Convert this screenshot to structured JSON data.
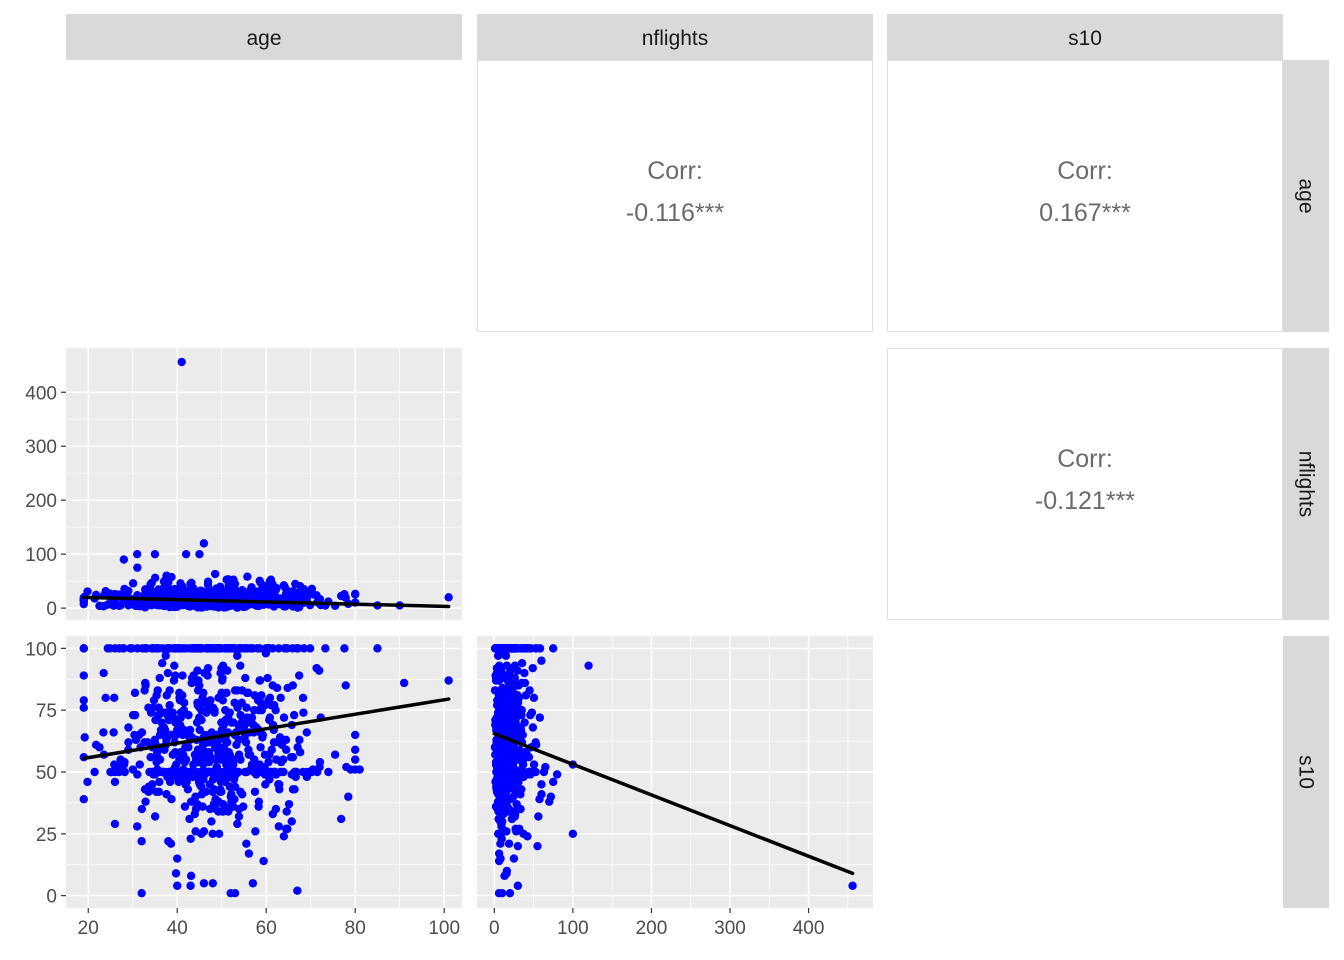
{
  "chart_data": {
    "type": "scatter",
    "variables": [
      "age",
      "nflights",
      "s10"
    ],
    "colors": {
      "point": "#0000ff",
      "fit_line": "#000000",
      "panel_bg": "#ebebeb",
      "strip_bg": "#d9d9d9",
      "grid": "#ffffff"
    },
    "ranges": {
      "age": [
        15,
        104
      ],
      "nflights": [
        -22,
        482
      ],
      "s10": [
        -5,
        105
      ]
    },
    "ticks": {
      "age": [
        20,
        40,
        60,
        80,
        100
      ],
      "nflights": [
        0,
        100,
        200,
        300,
        400
      ],
      "s10": [
        0,
        25,
        50,
        75,
        100
      ]
    },
    "correlations": [
      {
        "row": "age",
        "col": "nflights",
        "label": "Corr:",
        "value": "-0.116***"
      },
      {
        "row": "age",
        "col": "s10",
        "label": "Corr:",
        "value": "0.167***"
      },
      {
        "row": "nflights",
        "col": "s10",
        "label": "Corr:",
        "value": "-0.121***"
      }
    ],
    "fit_lines": [
      {
        "x": "age",
        "y": "nflights",
        "start": [
          19,
          20
        ],
        "end": [
          101,
          3
        ]
      },
      {
        "x": "age",
        "y": "s10",
        "start": [
          19,
          55.5
        ],
        "end": [
          101,
          79.5
        ]
      },
      {
        "x": "nflights",
        "y": "s10",
        "start": [
          0,
          65.5
        ],
        "end": [
          456,
          9
        ]
      }
    ],
    "outliers": [
      {
        "x": "age",
        "y": "nflights",
        "points": [
          [
            41,
            456
          ],
          [
            46,
            120
          ],
          [
            31,
            100
          ],
          [
            35,
            100
          ],
          [
            42,
            100
          ],
          [
            45,
            100
          ],
          [
            28,
            90
          ],
          [
            101,
            20
          ],
          [
            19,
            15
          ],
          [
            90,
            5
          ],
          [
            85,
            5
          ]
        ]
      },
      {
        "x": "age",
        "y": "s10",
        "points": [
          [
            19,
            39
          ],
          [
            19,
            89
          ],
          [
            32,
            1
          ],
          [
            40,
            4
          ],
          [
            43,
            4
          ],
          [
            46,
            5
          ],
          [
            48,
            5
          ],
          [
            52,
            1
          ],
          [
            53,
            1
          ],
          [
            57,
            5
          ],
          [
            67,
            2
          ],
          [
            101,
            87
          ],
          [
            91,
            86
          ],
          [
            85,
            100
          ],
          [
            81,
            51
          ],
          [
            79,
            51
          ],
          [
            78,
            52
          ],
          [
            80,
            51
          ],
          [
            72,
            52
          ],
          [
            40,
            15
          ],
          [
            38,
            22
          ],
          [
            32,
            22
          ],
          [
            31,
            28
          ],
          [
            26,
            29
          ]
        ]
      },
      {
        "x": "nflights",
        "y": "s10",
        "points": [
          [
            456,
            4
          ],
          [
            120,
            93
          ],
          [
            80,
            49
          ],
          [
            60,
            45
          ],
          [
            65,
            52
          ],
          [
            100,
            53
          ],
          [
            70,
            38
          ],
          [
            72,
            40
          ],
          [
            75,
            46
          ],
          [
            100,
            25
          ],
          [
            6,
            1
          ],
          [
            10,
            1
          ],
          [
            20,
            1
          ],
          [
            30,
            4
          ],
          [
            8,
            15
          ],
          [
            16,
            10
          ],
          [
            25,
            15
          ],
          [
            30,
            20
          ],
          [
            55,
            20
          ],
          [
            58,
            72
          ],
          [
            60,
            95
          ]
        ]
      }
    ]
  }
}
